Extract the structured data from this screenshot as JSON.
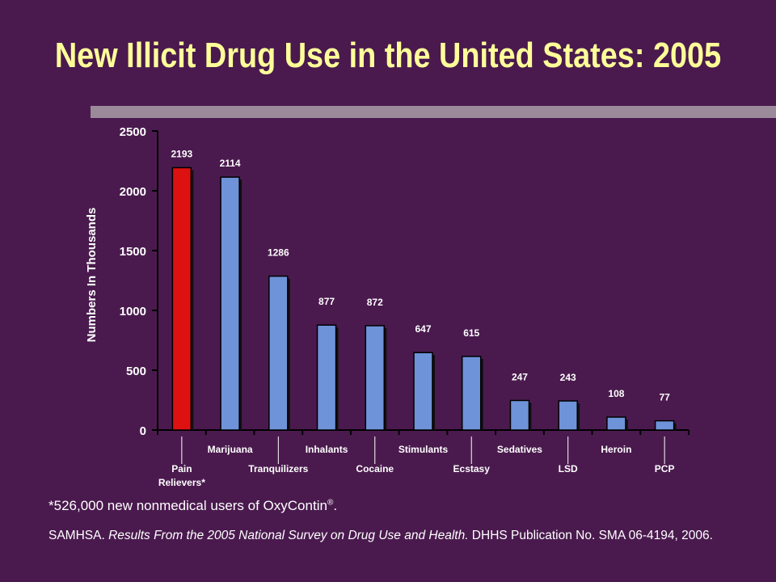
{
  "title": "New Illicit Drug Use in the United States: 2005",
  "footnote": {
    "text": "*526,000 new nonmedical users of OxyContin",
    "mark": "®",
    "end": "."
  },
  "source": {
    "prefix": "SAMHSA. ",
    "italic": "Results From the 2005 National Survey on Drug Use and Health.",
    "suffix": " DHHS Publication No. SMA 06-4194, 2006."
  },
  "colors": {
    "background": "#4a1a4e",
    "title": "#ffff99",
    "highlight_bar": "#dd1111",
    "bar": "#6f93d8",
    "rule": "#9b8a9a"
  },
  "chart_data": {
    "type": "bar",
    "ylabel": "Numbers In Thousands",
    "ylim": [
      0,
      2500
    ],
    "yticks": [
      0,
      500,
      1000,
      1500,
      2000,
      2500
    ],
    "grid": false,
    "categories": [
      "Pain Relievers*",
      "Marijuana",
      "Tranquilizers",
      "Inhalants",
      "Cocaine",
      "Stimulants",
      "Ecstasy",
      "Sedatives",
      "LSD",
      "Heroin",
      "PCP"
    ],
    "category_lines": [
      [
        "Pain",
        "Relievers*"
      ],
      [
        "Marijuana"
      ],
      [
        "Tranquilizers"
      ],
      [
        "Inhalants"
      ],
      [
        "Cocaine"
      ],
      [
        "Stimulants"
      ],
      [
        "Ecstasy"
      ],
      [
        "Sedatives"
      ],
      [
        "LSD"
      ],
      [
        "Heroin"
      ],
      [
        "PCP"
      ]
    ],
    "values": [
      2193,
      2114,
      1286,
      877,
      872,
      647,
      615,
      247,
      243,
      108,
      77
    ],
    "highlight_index": 0
  }
}
